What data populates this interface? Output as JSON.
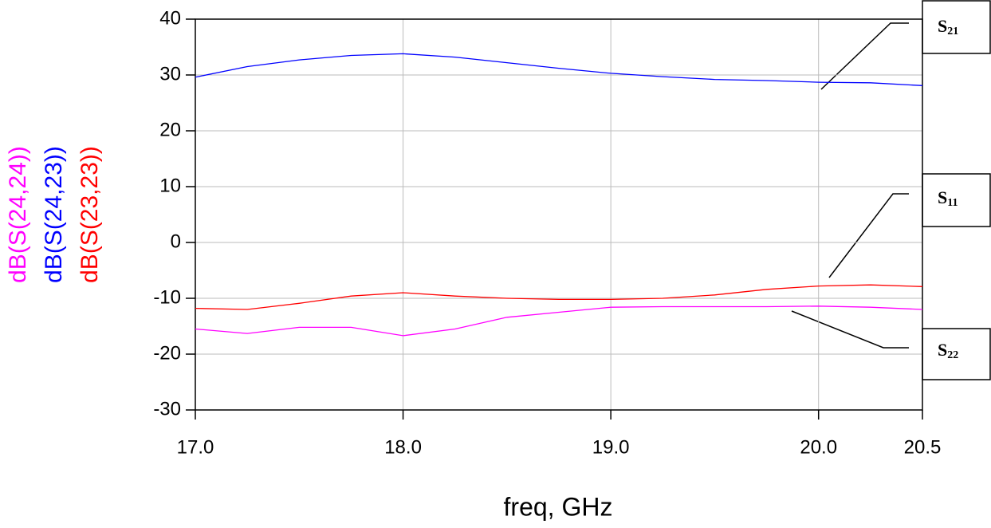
{
  "chart_data": {
    "type": "line",
    "x_label": "freq, GHz",
    "x": [
      17.0,
      17.25,
      17.5,
      17.75,
      18.0,
      18.25,
      18.5,
      18.75,
      19.0,
      19.25,
      19.5,
      19.75,
      20.0,
      20.25,
      20.5
    ],
    "series": [
      {
        "name": "dB(S(24,24))",
        "color": "#ff00ff",
        "values": [
          -15.5,
          -16.3,
          -15.2,
          -15.2,
          -16.7,
          -15.5,
          -13.4,
          -12.5,
          -11.6,
          -11.5,
          -11.5,
          -11.5,
          -11.4,
          -11.6,
          -12.0
        ]
      },
      {
        "name": "dB(S(24,23))",
        "color": "#0000ff",
        "values": [
          29.6,
          31.5,
          32.7,
          33.5,
          33.8,
          33.2,
          32.2,
          31.2,
          30.3,
          29.7,
          29.2,
          29.0,
          28.7,
          28.6,
          28.1
        ]
      },
      {
        "name": "dB(S(23,23))",
        "color": "#ff0000",
        "values": [
          -11.8,
          -12.0,
          -10.9,
          -9.6,
          -9.0,
          -9.6,
          -10.0,
          -10.2,
          -10.2,
          -10.0,
          -9.4,
          -8.4,
          -7.8,
          -7.6,
          -7.9
        ]
      }
    ],
    "xlim": [
      17.0,
      20.5
    ],
    "ylim": [
      -30,
      40
    ],
    "xticks": [
      {
        "value": 17,
        "label": "17.0"
      },
      {
        "value": 18,
        "label": "18.0"
      },
      {
        "value": 19,
        "label": "19.0"
      },
      {
        "value": 20,
        "label": "20.0"
      },
      20.5
    ],
    "yticks": [
      -30,
      -20,
      -10,
      0,
      10,
      20,
      30,
      40
    ],
    "grid": true,
    "annotations": [
      {
        "text": "S",
        "subscript": "21"
      },
      {
        "text": "S",
        "subscript": "11"
      },
      {
        "text": "S",
        "subscript": "22"
      }
    ]
  }
}
